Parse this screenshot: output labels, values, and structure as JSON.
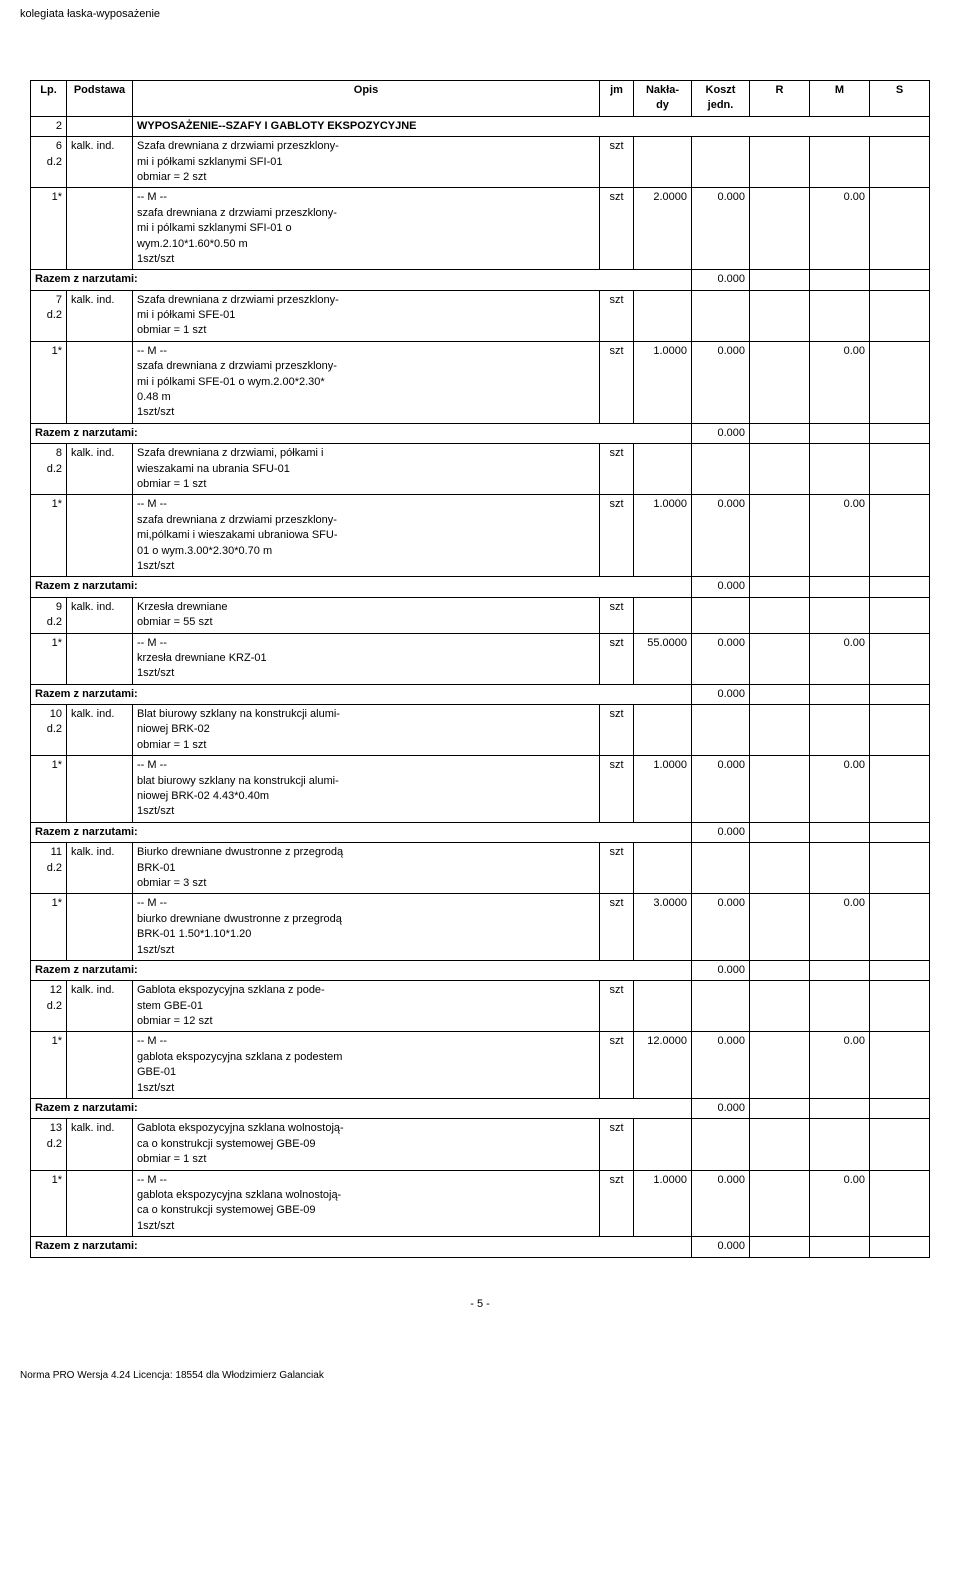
{
  "header_title": "kolegiata łaska-wyposażenie",
  "columns": {
    "lp": "Lp.",
    "podstawa": "Podstawa",
    "opis": "Opis",
    "jm": "jm",
    "naklady": "Nakła-\ndy",
    "koszt": "Koszt\njedn.",
    "r": "R",
    "m": "M",
    "s": "S"
  },
  "section": {
    "num": "2",
    "title": "WYPOSAŻENIE--SZAFY I GABLOTY EKSPOZYCYJNE"
  },
  "items": [
    {
      "lp": "6\nd.2",
      "pod": "kalk. ind.",
      "opis": "Szafa drewniana z drzwiami przeszklony-\nmi i półkami szklanymi SFI-01\nobmiar  = 2 szt",
      "jm": "szt",
      "sub": {
        "lp": "1*",
        "opis": "-- M --\nszafa drewniana z drzwiami przeszklony-\nmi i pólkami szklanymi SFI-01 o\nwym.2.10*1.60*0.50 m\n1szt/szt",
        "jm": "szt",
        "nakl": "2.0000",
        "koszt": "0.000",
        "m": "0.00"
      },
      "razem_koszt": "0.000"
    },
    {
      "lp": "7\nd.2",
      "pod": "kalk. ind.",
      "opis": "Szafa drewniana z drzwiami przeszklony-\nmi i półkami  SFE-01\nobmiar  = 1 szt",
      "jm": "szt",
      "sub": {
        "lp": "1*",
        "opis": "-- M --\nszafa drewniana z drzwiami przeszklony-\nmi i pólkami SFE-01 o wym.2.00*2.30*\n0.48 m\n1szt/szt",
        "jm": "szt",
        "nakl": "1.0000",
        "koszt": "0.000",
        "m": "0.00"
      },
      "razem_koszt": "0.000"
    },
    {
      "lp": "8\nd.2",
      "pod": "kalk. ind.",
      "opis": "Szafa drewniana z drzwiami, półkami i\nwieszakami na ubrania SFU-01\nobmiar  = 1 szt",
      "jm": "szt",
      "sub": {
        "lp": "1*",
        "opis": "-- M --\nszafa drewniana z drzwiami przeszklony-\nmi,pólkami i wieszakami ubraniowa SFU-\n01 o wym.3.00*2.30*0.70 m\n1szt/szt",
        "jm": "szt",
        "nakl": "1.0000",
        "koszt": "0.000",
        "m": "0.00"
      },
      "razem_koszt": "0.000"
    },
    {
      "lp": "9\nd.2",
      "pod": "kalk. ind.",
      "opis": "Krzesła drewniane\nobmiar  = 55 szt",
      "jm": "szt",
      "sub": {
        "lp": "1*",
        "opis": "-- M --\nkrzesła drewniane KRZ-01\n1szt/szt",
        "jm": "szt",
        "nakl": "55.0000",
        "koszt": "0.000",
        "m": "0.00"
      },
      "razem_koszt": "0.000"
    },
    {
      "lp": "10\nd.2",
      "pod": "kalk. ind.",
      "opis": "Blat biurowy szklany na konstrukcji alumi-\nniowej BRK-02\nobmiar  = 1 szt",
      "jm": "szt",
      "sub": {
        "lp": "1*",
        "opis": "-- M --\nblat biurowy szklany na konstrukcji alumi-\nniowej BRK-02  4.43*0.40m\n1szt/szt",
        "jm": "szt",
        "nakl": "1.0000",
        "koszt": "0.000",
        "m": "0.00"
      },
      "razem_koszt": "0.000"
    },
    {
      "lp": "11\nd.2",
      "pod": "kalk. ind.",
      "opis": "Biurko drewniane dwustronne z przegrodą\nBRK-01\nobmiar  = 3 szt",
      "jm": "szt",
      "sub": {
        "lp": "1*",
        "opis": "-- M --\nbiurko drewniane dwustronne z przegrodą\nBRK-01 1.50*1.10*1.20\n1szt/szt",
        "jm": "szt",
        "nakl": "3.0000",
        "koszt": "0.000",
        "m": "0.00"
      },
      "razem_koszt": "0.000"
    },
    {
      "lp": "12\nd.2",
      "pod": "kalk. ind.",
      "opis": "Gablota ekspozycyjna szklana z pode-\nstem GBE-01\nobmiar  = 12 szt",
      "jm": "szt",
      "sub": {
        "lp": "1*",
        "opis": "-- M --\ngablota ekspozycyjna szklana z podestem\nGBE-01\n1szt/szt",
        "jm": "szt",
        "nakl": "12.0000",
        "koszt": "0.000",
        "m": "0.00"
      },
      "razem_koszt": "0.000"
    },
    {
      "lp": "13\nd.2",
      "pod": "kalk. ind.",
      "opis": "Gablota ekspozycyjna szklana wolnostoją-\nca o konstrukcji systemowej GBE-09\nobmiar  = 1 szt",
      "jm": "szt",
      "sub": {
        "lp": "1*",
        "opis": "-- M --\ngablota ekspozycyjna szklana wolnostoją-\nca o konstrukcji systemowej GBE-09\n1szt/szt",
        "jm": "szt",
        "nakl": "1.0000",
        "koszt": "0.000",
        "m": "0.00"
      },
      "razem_koszt": "0.000"
    }
  ],
  "razem_label": "Razem z narzutami:",
  "page_number": "- 5 -",
  "footer": "Norma PRO Wersja 4.24 Licencja: 18554 dla Włodzimierz Galanciak"
}
